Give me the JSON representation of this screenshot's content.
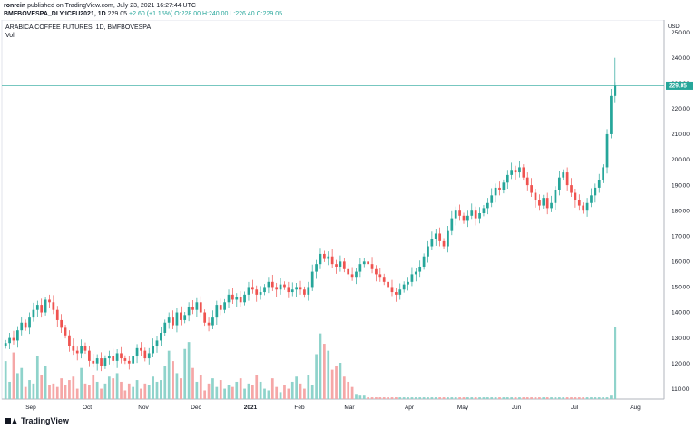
{
  "header": {
    "publisher": "ronrein",
    "published_text": " published on TradingView.com, July 23, 2021 16:27:44 UTC",
    "symbol_line": "BMFBOVESPA_DLY:ICFU2021, 1D",
    "last": "229.05",
    "change": "+2.60 (+1.15%)",
    "open": "O:228.00",
    "high": "H:240.00",
    "low": "L:226.40",
    "close": "C:229.05"
  },
  "legend": {
    "title": "ARABICA COFFEE FUTURES, 1D, BMFBOVESPA",
    "volume": "Vol"
  },
  "footer": {
    "brand": "TradingView"
  },
  "colors": {
    "up": "#26a69a",
    "down": "#ef5350",
    "up_vol": "#8fd3cb",
    "down_vol": "#f5a7a7",
    "last_line": "#26a69a"
  },
  "chart_data": {
    "type": "candlestick",
    "title": "ARABICA COFFEE FUTURES, 1D, BMFBOVESPA",
    "currency_label": "USD",
    "y_ticks": [
      "250.00",
      "240.00",
      "230.00",
      "220.00",
      "210.00",
      "200.00",
      "190.00",
      "180.00",
      "170.00",
      "160.00",
      "150.00",
      "140.00",
      "130.00",
      "120.00",
      "110.00"
    ],
    "ylim": [
      106,
      252
    ],
    "x_ticks": [
      "Sep",
      "Oct",
      "Nov",
      "Dec",
      "2021",
      "Feb",
      "Mar",
      "Apr",
      "May",
      "Jun",
      "Jul",
      "Aug"
    ],
    "last_price": "229.05",
    "series_close": [
      128,
      130,
      129,
      133,
      136,
      134,
      138,
      141,
      143,
      140,
      145,
      144,
      141,
      137,
      134,
      131,
      127,
      125,
      124,
      127,
      125,
      121,
      120,
      122,
      119,
      122,
      123,
      121,
      124,
      122,
      121,
      120,
      123,
      126,
      125,
      122,
      124,
      127,
      129,
      132,
      136,
      138,
      135,
      140,
      137,
      139,
      142,
      141,
      144,
      140,
      136,
      135,
      138,
      143,
      141,
      144,
      147,
      145,
      146,
      144,
      147,
      150,
      149,
      147,
      148,
      150,
      152,
      150,
      149,
      151,
      150,
      148,
      149,
      150,
      149,
      147,
      150,
      156,
      159,
      163,
      161,
      162,
      159,
      158,
      160,
      157,
      155,
      154,
      156,
      159,
      160,
      159,
      157,
      155,
      154,
      152,
      150,
      148,
      147,
      149,
      151,
      152,
      155,
      156,
      158,
      162,
      166,
      169,
      171,
      168,
      166,
      172,
      177,
      180,
      178,
      176,
      178,
      180,
      177,
      179,
      181,
      183,
      186,
      189,
      188,
      191,
      194,
      196,
      195,
      197,
      193,
      190,
      187,
      184,
      182,
      185,
      181,
      183,
      188,
      193,
      195,
      190,
      187,
      184,
      182,
      180,
      183,
      186,
      189,
      192,
      197,
      210,
      225,
      229
    ],
    "volume": [
      22,
      10,
      27,
      15,
      18,
      7,
      11,
      9,
      25,
      14,
      19,
      8,
      9,
      7,
      12,
      8,
      11,
      13,
      6,
      18,
      9,
      8,
      14,
      10,
      6,
      9,
      13,
      12,
      15,
      10,
      5,
      9,
      7,
      11,
      6,
      9,
      8,
      13,
      10,
      11,
      19,
      28,
      22,
      15,
      12,
      29,
      33,
      18,
      10,
      14,
      5,
      9,
      12,
      7,
      11,
      6,
      8,
      7,
      10,
      12,
      6,
      9,
      8,
      14,
      10,
      6,
      5,
      12,
      7,
      4,
      8,
      6,
      10,
      13,
      9,
      6,
      14,
      8,
      26,
      38,
      32,
      28,
      17,
      19,
      21,
      13,
      10,
      7,
      3,
      2,
      2,
      1,
      1,
      1,
      1,
      1,
      1,
      1,
      1,
      1,
      1,
      1,
      1,
      1,
      1,
      1,
      1,
      1,
      1,
      1,
      1,
      1,
      1,
      1,
      1,
      1,
      1,
      1,
      1,
      1,
      1,
      1,
      1,
      1,
      1,
      1,
      1,
      1,
      1,
      1,
      1,
      1,
      1,
      1,
      1,
      1,
      1,
      1,
      1,
      1,
      1,
      1,
      1,
      1,
      1,
      1,
      1,
      1,
      1,
      1,
      1,
      1,
      2,
      42
    ],
    "volume_max": 42
  }
}
